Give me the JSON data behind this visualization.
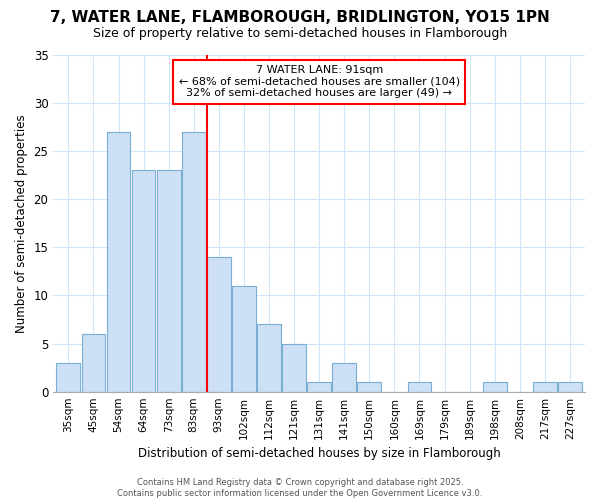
{
  "title": "7, WATER LANE, FLAMBOROUGH, BRIDLINGTON, YO15 1PN",
  "subtitle": "Size of property relative to semi-detached houses in Flamborough",
  "xlabel": "Distribution of semi-detached houses by size in Flamborough",
  "ylabel": "Number of semi-detached properties",
  "categories": [
    "35sqm",
    "45sqm",
    "54sqm",
    "64sqm",
    "73sqm",
    "83sqm",
    "93sqm",
    "102sqm",
    "112sqm",
    "121sqm",
    "131sqm",
    "141sqm",
    "150sqm",
    "160sqm",
    "169sqm",
    "179sqm",
    "189sqm",
    "198sqm",
    "208sqm",
    "217sqm",
    "227sqm"
  ],
  "values": [
    3,
    6,
    27,
    23,
    23,
    27,
    14,
    11,
    7,
    5,
    1,
    3,
    1,
    0,
    1,
    0,
    0,
    1,
    0,
    1,
    1
  ],
  "bar_color": "#cde0f5",
  "bar_edge_color": "#7aafd4",
  "red_line_index": 6,
  "annotation_title": "7 WATER LANE: 91sqm",
  "annotation_line1": "← 68% of semi-detached houses are smaller (104)",
  "annotation_line2": "32% of semi-detached houses are larger (49) →",
  "ylim": [
    0,
    35
  ],
  "yticks": [
    0,
    5,
    10,
    15,
    20,
    25,
    30,
    35
  ],
  "background_color": "#ffffff",
  "plot_background": "#ffffff",
  "grid_color": "#d0e4f5",
  "footer_line1": "Contains HM Land Registry data © Crown copyright and database right 2025.",
  "footer_line2": "Contains public sector information licensed under the Open Government Licence v3.0."
}
